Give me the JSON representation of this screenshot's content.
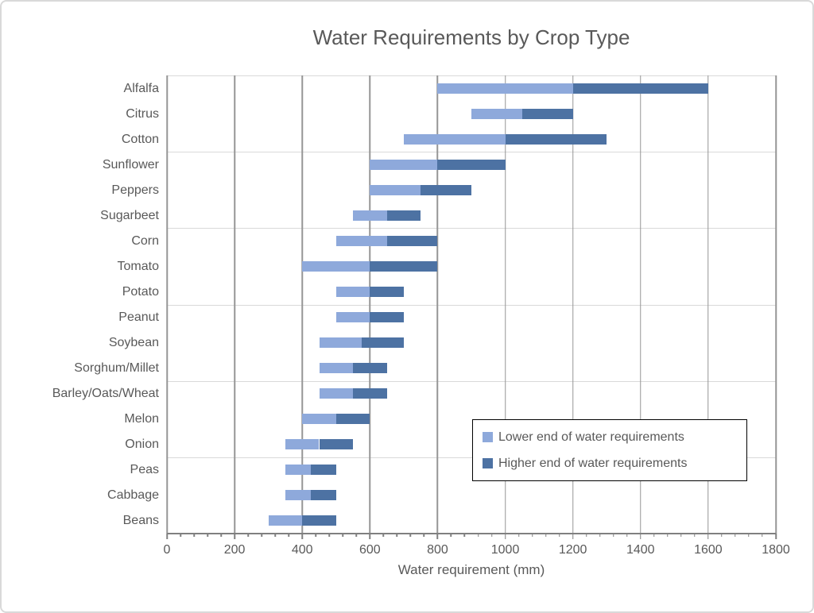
{
  "chart": {
    "title": "Water Requirements by Crop Type",
    "x_axis_title": "Water requirement (mm)"
  },
  "legend": {
    "items": [
      {
        "label": "Lower end of water requirements",
        "color": "#8EA9DB"
      },
      {
        "label": "Higher end of water requirements",
        "color": "#4D72A3"
      }
    ]
  },
  "chart_data": {
    "type": "bar",
    "orientation": "horizontal",
    "title": "Water Requirements by Crop Type",
    "xlabel": "Water requirement (mm)",
    "ylabel": "",
    "x_axis": {
      "min": 0,
      "max": 1800,
      "major_unit": 200,
      "minor_unit": 40,
      "tick_labels": [
        0,
        200,
        400,
        600,
        800,
        1000,
        1200,
        1400,
        1600,
        1800
      ]
    },
    "y_axis": {
      "gridline_interval_rows": 3
    },
    "grid": true,
    "legend_position": "inside-lower-right",
    "segment_rule": "Each bar floats from 'lower' to 'higher'; the light segment spans lower to (lower+higher)/2, the dark segment spans (lower+higher)/2 to higher.",
    "series": [
      {
        "name": "Lower end of water requirements",
        "color": "#8EA9DB"
      },
      {
        "name": "Higher end of water requirements",
        "color": "#4D72A3"
      }
    ],
    "categories": [
      "Alfalfa",
      "Citrus",
      "Cotton",
      "Sunflower",
      "Peppers",
      "Sugarbeet",
      "Corn",
      "Tomato",
      "Potato",
      "Peanut",
      "Soybean",
      "Sorghum/Millet",
      "Barley/Oats/Wheat",
      "Melon",
      "Onion",
      "Peas",
      "Cabbage",
      "Beans"
    ],
    "bars": [
      {
        "category": "Alfalfa",
        "lower": 800,
        "higher": 1600
      },
      {
        "category": "Citrus",
        "lower": 900,
        "higher": 1200
      },
      {
        "category": "Cotton",
        "lower": 700,
        "higher": 1300
      },
      {
        "category": "Sunflower",
        "lower": 600,
        "higher": 1000
      },
      {
        "category": "Peppers",
        "lower": 600,
        "higher": 900
      },
      {
        "category": "Sugarbeet",
        "lower": 550,
        "higher": 750
      },
      {
        "category": "Corn",
        "lower": 500,
        "higher": 800
      },
      {
        "category": "Tomato",
        "lower": 400,
        "higher": 800
      },
      {
        "category": "Potato",
        "lower": 500,
        "higher": 700
      },
      {
        "category": "Peanut",
        "lower": 500,
        "higher": 700
      },
      {
        "category": "Soybean",
        "lower": 450,
        "higher": 700
      },
      {
        "category": "Sorghum/Millet",
        "lower": 450,
        "higher": 650
      },
      {
        "category": "Barley/Oats/Wheat",
        "lower": 450,
        "higher": 650
      },
      {
        "category": "Melon",
        "lower": 400,
        "higher": 600
      },
      {
        "category": "Onion",
        "lower": 350,
        "higher": 550
      },
      {
        "category": "Peas",
        "lower": 350,
        "higher": 500
      },
      {
        "category": "Cabbage",
        "lower": 350,
        "higher": 500
      },
      {
        "category": "Beans",
        "lower": 300,
        "higher": 500
      }
    ]
  }
}
